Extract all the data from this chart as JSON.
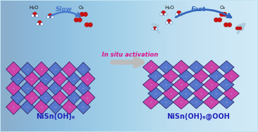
{
  "bg_color": "#c2e4f4",
  "left_label": "NiSn(OH)₆",
  "right_label": "NiSn(OH)₆@OOH",
  "center_text": "In situ activation",
  "left_water": "H₂O",
  "left_o2": "O₂",
  "right_water": "H₂O",
  "right_o2": "O₂",
  "slow_text": "Slow",
  "fast_text": "Fast",
  "label_color": "#2222bb",
  "slow_color": "#4477cc",
  "fast_color": "#3366bb",
  "center_text_color": "#dd1188",
  "crystal_pink": "#cc44aa",
  "crystal_blue": "#5577cc",
  "crystal_edge": "#221155",
  "water_o_color": "#cc1111",
  "water_h_color": "#ffffff",
  "ooh_blue": "#1133cc",
  "arrow_bg_color": "#aaccdd",
  "center_arrow_color": "#bbbbbb"
}
